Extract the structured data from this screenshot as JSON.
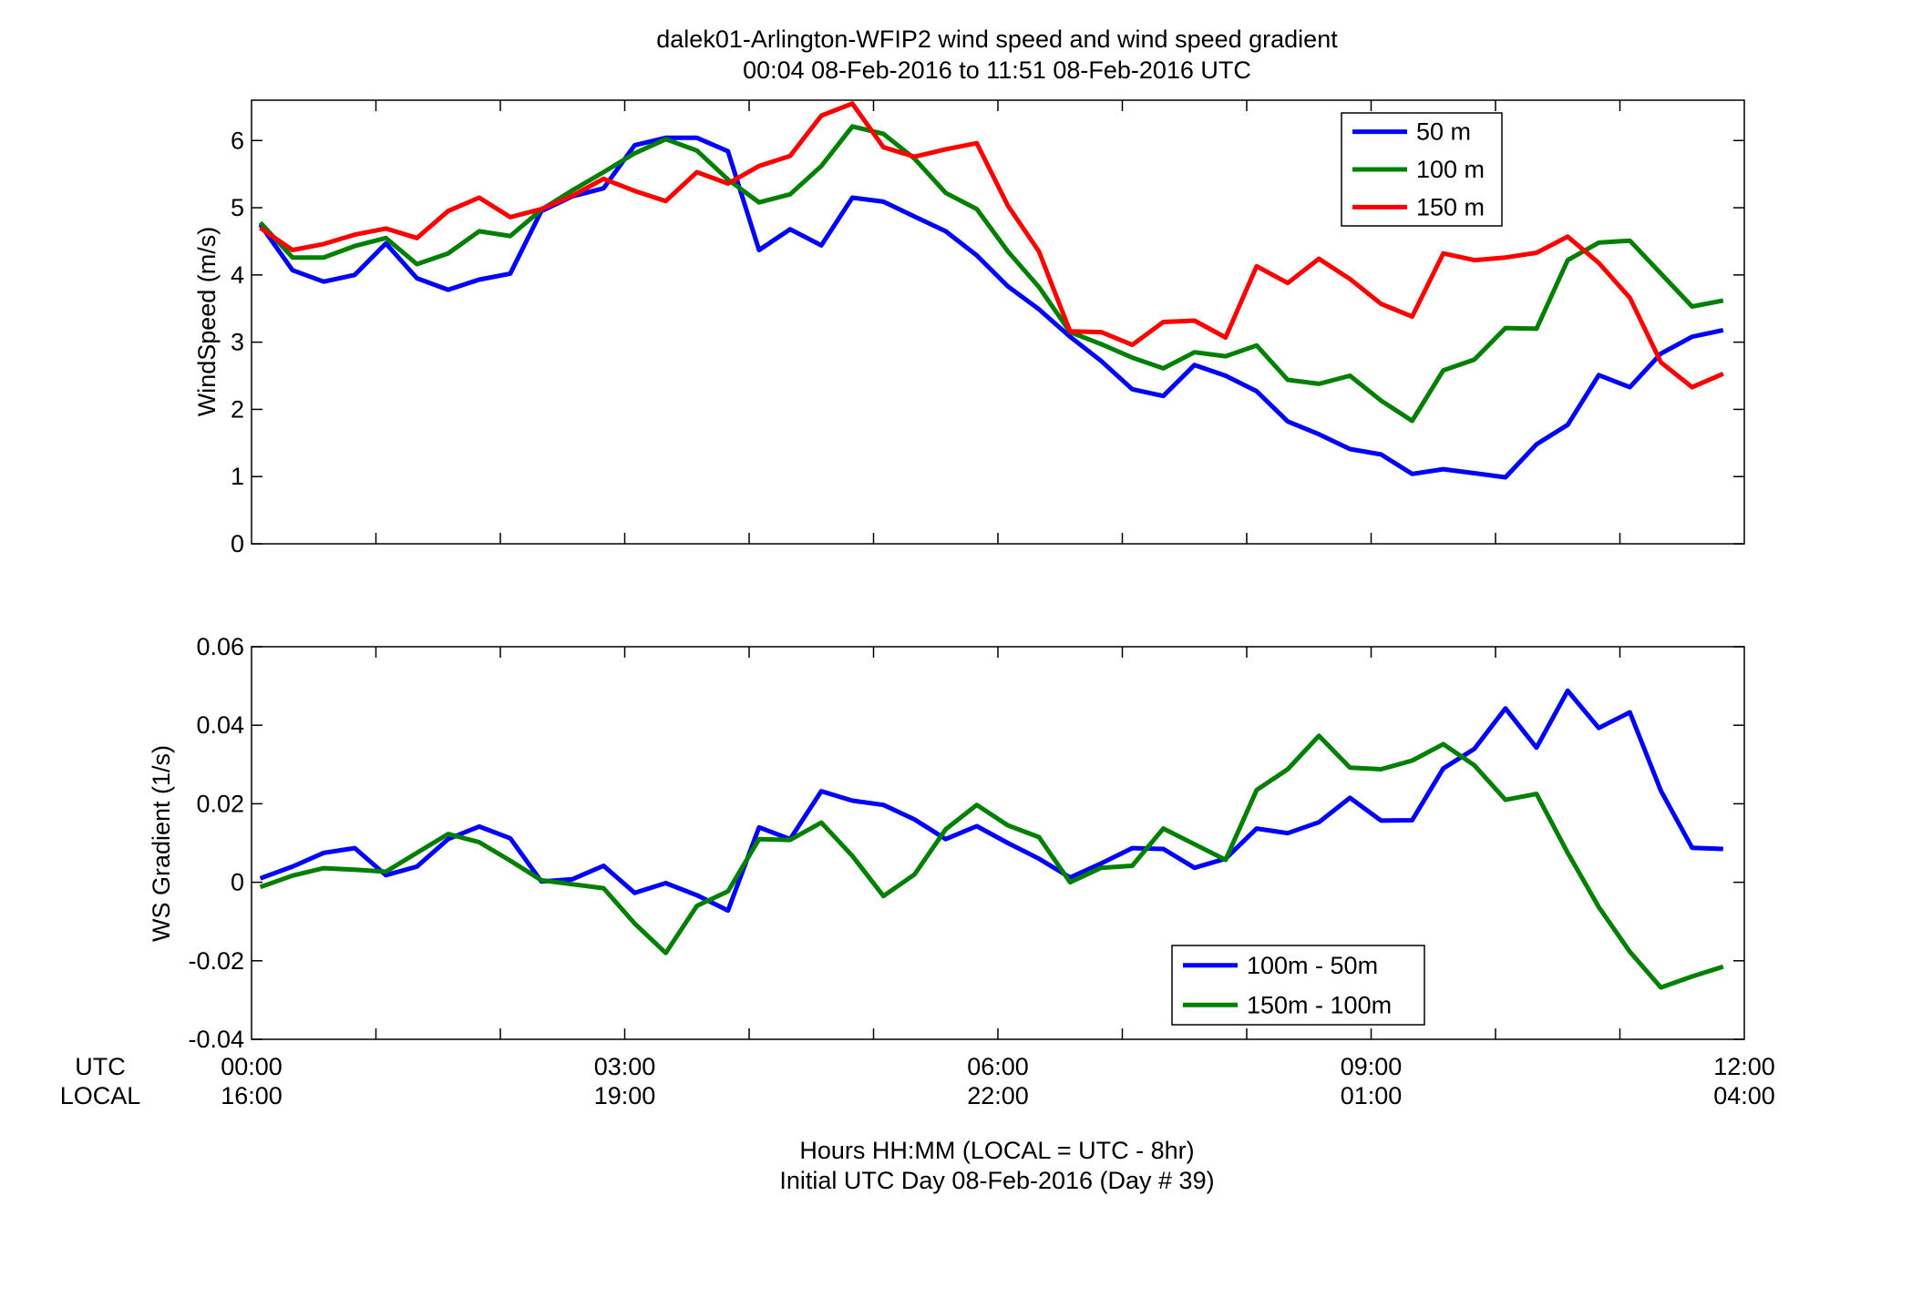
{
  "figure": {
    "title_line1": "dalek01-Arlington-WFIP2  wind speed and wind speed gradient",
    "title_line2": "00:04 08-Feb-2016 to 11:51 08-Feb-2016  UTC",
    "footer_line1": "Hours HH:MM  (LOCAL = UTC - 8hr)",
    "footer_line2": "Initial UTC Day 08-Feb-2016 (Day # 39)",
    "utc_row_label": "UTC",
    "local_row_label": "LOCAL",
    "xticks_utc": [
      "00:00",
      "03:00",
      "06:00",
      "09:00",
      "12:00"
    ],
    "xticks_local": [
      "16:00",
      "19:00",
      "22:00",
      "01:00",
      "04:00"
    ]
  },
  "chart_data": [
    {
      "type": "line",
      "title": "",
      "xlabel": "",
      "ylabel": "WindSpeed (m/s)",
      "xlim": [
        0,
        12
      ],
      "ylim": [
        0,
        6.6
      ],
      "yticks": [
        0,
        1,
        2,
        3,
        4,
        5,
        6
      ],
      "grid": false,
      "legend_position": "top-right",
      "x": [
        0.07,
        0.33,
        0.58,
        0.83,
        1.08,
        1.33,
        1.58,
        1.83,
        2.08,
        2.33,
        2.58,
        2.83,
        3.08,
        3.33,
        3.58,
        3.83,
        4.08,
        4.33,
        4.58,
        4.83,
        5.08,
        5.33,
        5.58,
        5.83,
        6.08,
        6.33,
        6.58,
        6.83,
        7.08,
        7.33,
        7.58,
        7.83,
        8.08,
        8.33,
        8.58,
        8.83,
        9.08,
        9.33,
        9.58,
        9.83,
        10.08,
        10.33,
        10.58,
        10.83,
        11.08,
        11.33,
        11.58,
        11.83
      ],
      "series": [
        {
          "name": "50 m",
          "color": "#0000ff",
          "values": [
            4.75,
            4.07,
            3.9,
            4.0,
            4.47,
            3.95,
            3.78,
            3.93,
            4.02,
            4.95,
            5.17,
            5.29,
            5.93,
            6.04,
            6.04,
            5.84,
            4.37,
            4.68,
            4.44,
            5.15,
            5.09,
            4.87,
            4.65,
            4.29,
            3.83,
            3.49,
            3.08,
            2.72,
            2.3,
            2.2,
            2.66,
            2.5,
            2.27,
            1.82,
            1.63,
            1.41,
            1.33,
            1.04,
            1.11,
            1.05,
            0.99,
            1.48,
            1.77,
            2.51,
            2.33,
            2.83,
            3.08,
            3.18
          ]
        },
        {
          "name": "100 m",
          "color": "#008000",
          "values": [
            4.78,
            4.26,
            4.26,
            4.43,
            4.55,
            4.16,
            4.32,
            4.65,
            4.58,
            4.97,
            5.26,
            5.53,
            5.81,
            6.02,
            5.85,
            5.42,
            5.08,
            5.2,
            5.62,
            6.21,
            6.1,
            5.73,
            5.22,
            4.98,
            4.35,
            3.82,
            3.15,
            2.97,
            2.77,
            2.61,
            2.85,
            2.79,
            2.95,
            2.44,
            2.38,
            2.5,
            2.13,
            1.83,
            2.58,
            2.74,
            3.21,
            3.2,
            4.22,
            4.48,
            4.51,
            4.02,
            3.53,
            3.62
          ]
        },
        {
          "name": "150 m",
          "color": "#ff0000",
          "values": [
            4.7,
            4.37,
            4.46,
            4.6,
            4.69,
            4.55,
            4.95,
            5.15,
            4.86,
            4.98,
            5.18,
            5.43,
            5.25,
            5.1,
            5.53,
            5.36,
            5.62,
            5.77,
            6.37,
            6.55,
            5.9,
            5.76,
            5.87,
            5.96,
            5.03,
            4.35,
            3.16,
            3.15,
            2.96,
            3.3,
            3.32,
            3.07,
            4.13,
            3.88,
            4.24,
            3.94,
            3.57,
            3.38,
            4.32,
            4.22,
            4.26,
            4.33,
            4.57,
            4.18,
            3.66,
            2.7,
            2.33,
            2.53
          ]
        }
      ]
    },
    {
      "type": "line",
      "title": "",
      "xlabel": "",
      "ylabel": "WS Gradient (1/s)",
      "xlim": [
        0,
        12
      ],
      "ylim": [
        -0.04,
        0.06
      ],
      "yticks": [
        -0.04,
        -0.02,
        0,
        0.02,
        0.04,
        0.06
      ],
      "ytick_labels": [
        "-0.04",
        "-0.02",
        "0",
        "0.02",
        "0.04",
        "0.06"
      ],
      "grid": false,
      "legend_position": "bottom-center",
      "x": [
        0.07,
        0.33,
        0.58,
        0.83,
        1.08,
        1.33,
        1.58,
        1.83,
        2.08,
        2.33,
        2.58,
        2.83,
        3.08,
        3.33,
        3.58,
        3.83,
        4.08,
        4.33,
        4.58,
        4.83,
        5.08,
        5.33,
        5.58,
        5.83,
        6.08,
        6.33,
        6.58,
        6.83,
        7.08,
        7.33,
        7.58,
        7.83,
        8.08,
        8.33,
        8.58,
        8.83,
        9.08,
        9.33,
        9.58,
        9.83,
        10.08,
        10.33,
        10.58,
        10.83,
        11.08,
        11.33,
        11.58,
        11.83
      ],
      "series": [
        {
          "name": "100m - 50m",
          "color": "#0000ff",
          "values": [
            0.001,
            0.004,
            0.0075,
            0.0087,
            0.0018,
            0.004,
            0.011,
            0.0142,
            0.0112,
            0.0002,
            0.0008,
            0.0042,
            -0.0027,
            -0.0002,
            -0.0033,
            -0.0072,
            0.014,
            0.011,
            0.0232,
            0.0208,
            0.0197,
            0.016,
            0.011,
            0.0143,
            0.01,
            0.006,
            0.0012,
            0.0048,
            0.0087,
            0.0085,
            0.0037,
            0.006,
            0.0137,
            0.0125,
            0.0153,
            0.0215,
            0.0157,
            0.0158,
            0.029,
            0.034,
            0.0443,
            0.0343,
            0.0488,
            0.0393,
            0.0433,
            0.0233,
            0.0088,
            0.0085
          ]
        },
        {
          "name": "150m - 100m",
          "color": "#008000",
          "values": [
            -0.0012,
            0.0017,
            0.0036,
            0.0032,
            0.0027,
            0.0075,
            0.0123,
            0.0102,
            0.0055,
            0.0005,
            -0.0005,
            -0.0015,
            -0.0105,
            -0.018,
            -0.006,
            -0.0023,
            0.011,
            0.0108,
            0.0152,
            0.0067,
            -0.0035,
            0.002,
            0.0135,
            0.0197,
            0.0145,
            0.0115,
            0.0,
            0.0037,
            0.0042,
            0.0137,
            0.0097,
            0.0057,
            0.0235,
            0.0288,
            0.0373,
            0.0292,
            0.0288,
            0.031,
            0.0352,
            0.0298,
            0.021,
            0.0225,
            0.0075,
            -0.0063,
            -0.0177,
            -0.0268,
            -0.024,
            -0.0215
          ]
        }
      ]
    }
  ]
}
